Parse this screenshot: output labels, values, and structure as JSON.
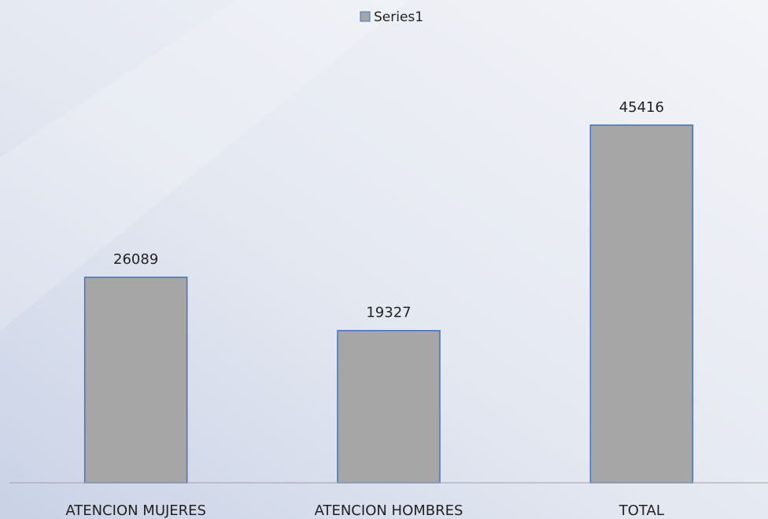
{
  "chart_data": {
    "type": "bar",
    "categories": [
      "ATENCION MUJERES",
      "ATENCION HOMBRES",
      "TOTAL"
    ],
    "series": [
      {
        "name": "Series1",
        "color": "#a6a6a6",
        "values": [
          26089,
          19327,
          45416
        ]
      }
    ],
    "ylim": [
      0,
      50000
    ],
    "legend": "top"
  }
}
